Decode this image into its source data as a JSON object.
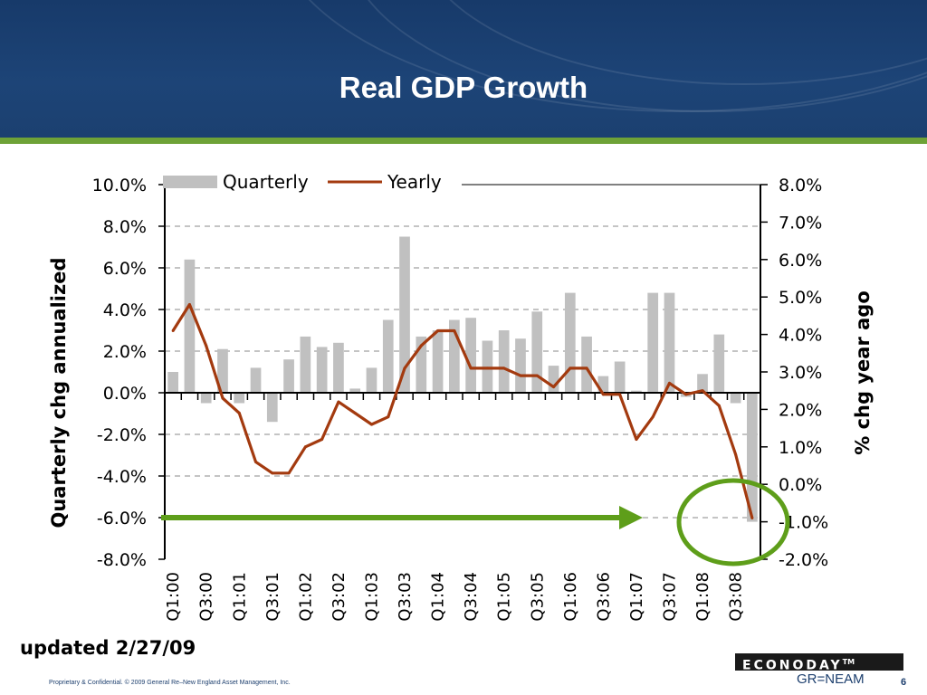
{
  "slide": {
    "title": "Real GDP Growth",
    "updated": "updated 2/27/09",
    "footer": "Proprietary & Confidential. © 2009 General Re–New England Asset Management, Inc.",
    "page_number": "6",
    "logo_econoday": "ECONODAY",
    "logo_tm": "TM",
    "logo_grneam": "GR=NEAM"
  },
  "colors": {
    "header_bg": "#1d4477",
    "accent_green": "#6ea237",
    "bar": "#c0c0c0",
    "line": "#a33a0f"
  },
  "chart_data": {
    "type": "bar",
    "combo": "bar+line",
    "ylabel_left": "Quarterly chg annualized",
    "ylabel_right": "% chg year ago",
    "ylim_left": [
      -8,
      10
    ],
    "ylim_right": [
      -2,
      8
    ],
    "left_ticks": [
      "10.0%",
      "8.0%",
      "6.0%",
      "4.0%",
      "2.0%",
      "0.0%",
      "-2.0%",
      "-4.0%",
      "-6.0%",
      "-8.0%"
    ],
    "right_ticks": [
      "8.0%",
      "7.0%",
      "6.0%",
      "5.0%",
      "4.0%",
      "3.0%",
      "2.0%",
      "1.0%",
      "0.0%",
      "-1.0%",
      "-2.0%"
    ],
    "x_tick_labels": [
      "Q1:00",
      "Q3:00",
      "Q1:01",
      "Q3:01",
      "Q1:02",
      "Q3:02",
      "Q1:03",
      "Q3:03",
      "Q1:04",
      "Q3:04",
      "Q1:05",
      "Q3:05",
      "Q1:06",
      "Q3:06",
      "Q1:07",
      "Q3:07",
      "Q1:08",
      "Q3:08"
    ],
    "grid": true,
    "legend_position": "top",
    "series": [
      {
        "name": "Quarterly",
        "type": "bar",
        "axis": "left",
        "values": [
          1.0,
          6.4,
          -0.5,
          2.1,
          -0.5,
          1.2,
          -1.4,
          1.6,
          2.7,
          2.2,
          2.4,
          0.2,
          1.2,
          3.5,
          7.5,
          2.7,
          3.0,
          3.5,
          3.6,
          2.5,
          3.0,
          2.6,
          3.9,
          1.3,
          4.8,
          2.7,
          0.8,
          1.5,
          0.1,
          4.8,
          4.8,
          -0.2,
          0.9,
          2.8,
          -0.5,
          -6.2
        ]
      },
      {
        "name": "Yearly",
        "type": "line",
        "axis": "right",
        "values": [
          4.1,
          4.8,
          3.7,
          2.3,
          1.9,
          0.6,
          0.3,
          0.3,
          1.0,
          1.2,
          2.2,
          1.9,
          1.6,
          1.8,
          3.1,
          3.7,
          4.1,
          4.1,
          3.1,
          3.1,
          3.1,
          2.9,
          2.9,
          2.6,
          3.1,
          3.1,
          2.4,
          2.4,
          1.2,
          1.8,
          2.7,
          2.4,
          2.5,
          2.1,
          0.8,
          -0.9
        ]
      }
    ],
    "annotations": [
      "green arrow pointing right at the -6.0% level",
      "green circle around the Q4:08 value"
    ]
  }
}
